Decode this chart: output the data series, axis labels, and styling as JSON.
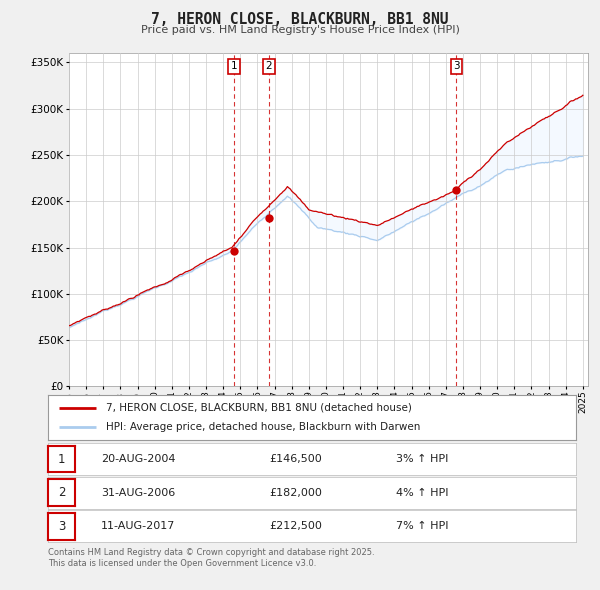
{
  "title": "7, HERON CLOSE, BLACKBURN, BB1 8NU",
  "subtitle": "Price paid vs. HM Land Registry's House Price Index (HPI)",
  "bg_color": "#f0f0f0",
  "plot_bg_color": "#ffffff",
  "grid_color": "#cccccc",
  "red_line_color": "#cc0000",
  "blue_line_color": "#aaccee",
  "fill_color": "#ddeeff",
  "vline_color": "#cc0000",
  "purchases": [
    {
      "label": "1",
      "date": 2004.64,
      "price": 146500,
      "pct": "3%",
      "date_str": "20-AUG-2004",
      "price_str": "£146,500"
    },
    {
      "label": "2",
      "date": 2006.67,
      "price": 182000,
      "pct": "4%",
      "date_str": "31-AUG-2006",
      "price_str": "£182,000"
    },
    {
      "label": "3",
      "date": 2017.62,
      "price": 212500,
      "pct": "7%",
      "date_str": "11-AUG-2017",
      "price_str": "£212,500"
    }
  ],
  "ylim": [
    0,
    360000
  ],
  "ytick_vals": [
    0,
    50000,
    100000,
    150000,
    200000,
    250000,
    300000,
    350000
  ],
  "ytick_labels": [
    "£0",
    "£50K",
    "£100K",
    "£150K",
    "£200K",
    "£250K",
    "£300K",
    "£350K"
  ],
  "xlabel_years": [
    1995,
    1996,
    1997,
    1998,
    1999,
    2000,
    2001,
    2002,
    2003,
    2004,
    2005,
    2006,
    2007,
    2008,
    2009,
    2010,
    2011,
    2012,
    2013,
    2014,
    2015,
    2016,
    2017,
    2018,
    2019,
    2020,
    2021,
    2022,
    2023,
    2024,
    2025
  ],
  "legend_label_red": "7, HERON CLOSE, BLACKBURN, BB1 8NU (detached house)",
  "legend_label_blue": "HPI: Average price, detached house, Blackburn with Darwen",
  "footer": "Contains HM Land Registry data © Crown copyright and database right 2025.\nThis data is licensed under the Open Government Licence v3.0.",
  "xlim": [
    1995,
    2025.3
  ]
}
